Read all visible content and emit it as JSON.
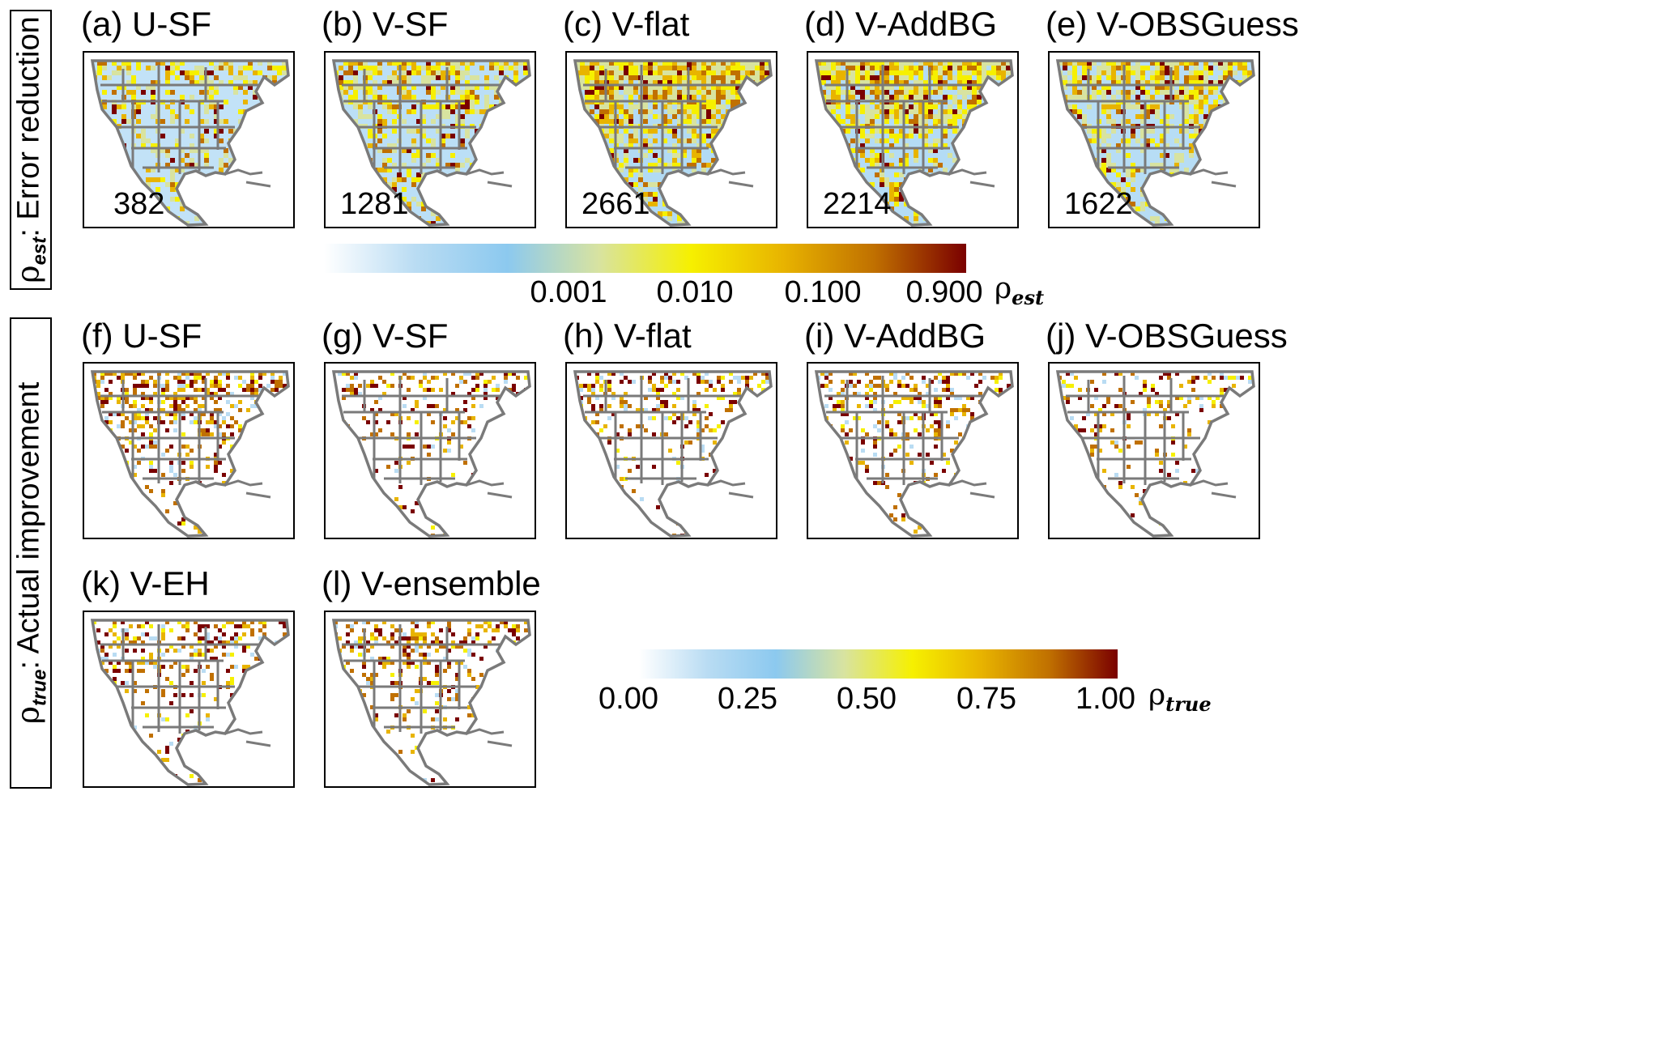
{
  "row_labels": {
    "est": {
      "symbol": "ρ",
      "sub": "est",
      "text": ": Error reduction"
    },
    "true": {
      "symbol": "ρ",
      "sub": "true",
      "text": ": Actual improvement"
    }
  },
  "panels": [
    {
      "title": "(a) U-SF",
      "count": "382",
      "density": 0.18,
      "base": 0.45
    },
    {
      "title": "(b) V-SF",
      "count": "1281",
      "density": 0.32,
      "base": 0.6
    },
    {
      "title": "(c) V-flat",
      "count": "2661",
      "density": 0.62,
      "base": 0.8
    },
    {
      "title": "(d) V-AddBG",
      "count": "2214",
      "density": 0.52,
      "base": 0.75
    },
    {
      "title": "(e) V-OBSGuess",
      "count": "1622",
      "density": 0.4,
      "base": 0.68
    },
    {
      "title": "(f) U-SF",
      "count": "",
      "density": 0.45,
      "base": 0.2
    },
    {
      "title": "(g) V-SF",
      "count": "",
      "density": 0.22,
      "base": 0.12
    },
    {
      "title": "(h) V-flat",
      "count": "",
      "density": 0.28,
      "base": 0.06
    },
    {
      "title": "(i) V-AddBG",
      "count": "",
      "density": 0.3,
      "base": 0.07
    },
    {
      "title": "(j) V-OBSGuess",
      "count": "",
      "density": 0.2,
      "base": 0.1
    },
    {
      "title": "(k) V-EH",
      "count": "",
      "density": 0.3,
      "base": 0.1
    },
    {
      "title": "(l) V-ensemble",
      "count": "",
      "density": 0.3,
      "base": 0.1
    }
  ],
  "colorbar_est": {
    "ticks": [
      "0.001",
      "0.010",
      "0.100",
      "0.900"
    ],
    "label_symbol": "ρ",
    "label_sub": "est"
  },
  "colorbar_true": {
    "ticks": [
      "0.00",
      "0.25",
      "0.50",
      "0.75",
      "1.00"
    ],
    "label_symbol": "ρ",
    "label_sub": "true"
  },
  "colors": {
    "ramp": [
      "#ffffff",
      "#b9dcf3",
      "#8cc9ef",
      "#d8e3a0",
      "#f6f000",
      "#e8b400",
      "#c07000",
      "#7a0000"
    ],
    "border": "#7a7a7a"
  }
}
